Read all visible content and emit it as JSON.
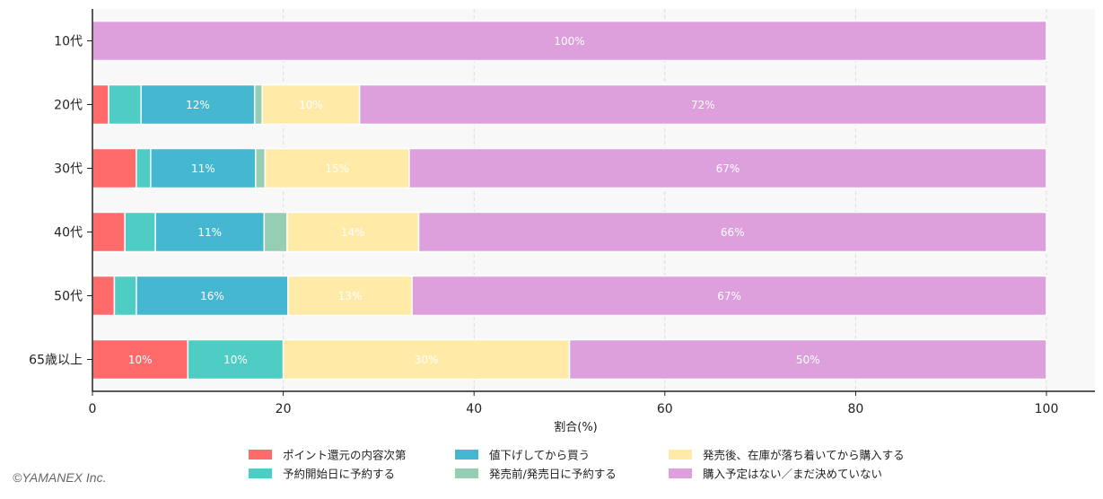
{
  "chart_data": {
    "type": "bar",
    "orientation": "horizontal",
    "stacked": true,
    "categories": [
      "10代",
      "20代",
      "30代",
      "40代",
      "50代",
      "65歳以上"
    ],
    "series": [
      {
        "name": "ポイント還元の内容次第",
        "color": "#ff6b6b",
        "values": [
          0,
          1.7,
          4.6,
          3.4,
          2.3,
          10
        ]
      },
      {
        "name": "予約開始日に予約する",
        "color": "#4ecdc4",
        "values": [
          0,
          3.4,
          1.5,
          3.2,
          2.3,
          10
        ]
      },
      {
        "name": "値下げしてから買う",
        "color": "#45b7d1",
        "values": [
          0,
          11.9,
          11.0,
          11.4,
          15.9,
          0
        ]
      },
      {
        "name": "発売前/発売日に予約する",
        "color": "#96ceb4",
        "values": [
          0,
          0.8,
          1.0,
          2.4,
          0,
          0
        ]
      },
      {
        "name": "発売後、在庫が落ち着いてから購入する",
        "color": "#ffeaa7",
        "values": [
          0,
          10.2,
          15.1,
          13.8,
          13.0,
          30
        ]
      },
      {
        "name": "購入予定はない／まだ決めていない",
        "color": "#dda0dd",
        "values": [
          100,
          72.0,
          66.8,
          65.8,
          66.5,
          50
        ]
      }
    ],
    "xlabel": "割合(%)",
    "ylabel": "",
    "xlim": [
      0,
      105
    ],
    "xticks": [
      0,
      20,
      40,
      60,
      80,
      100
    ],
    "grid": "vertical dashed",
    "legend": "bottom",
    "data_labels": "percent inside segments ≥10%"
  },
  "copyright": "©YAMANEX Inc."
}
